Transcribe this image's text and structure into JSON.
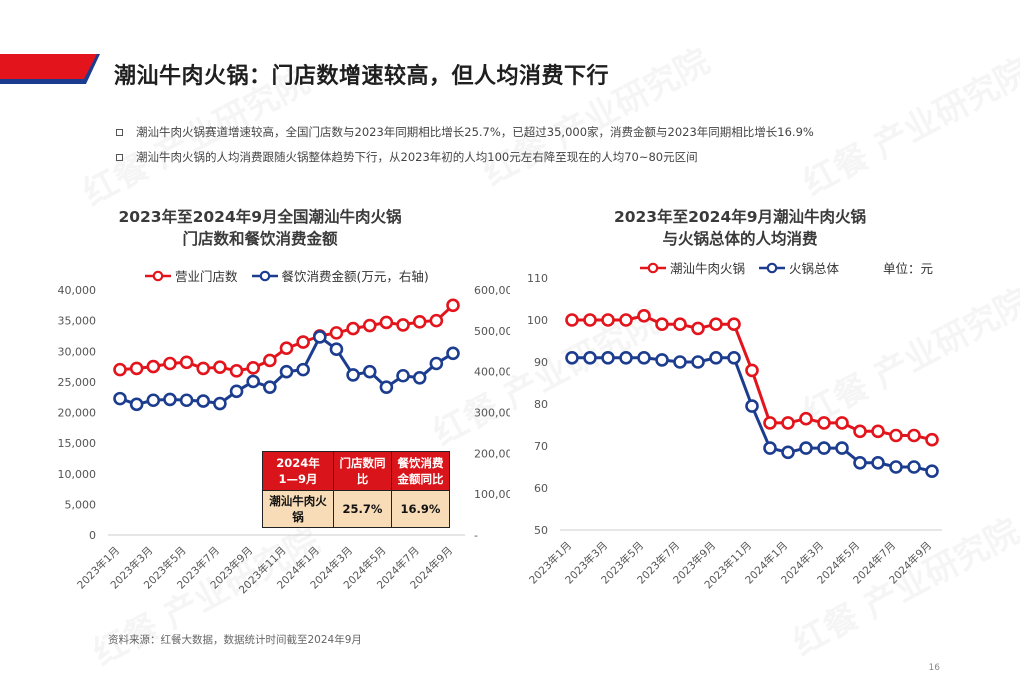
{
  "page": {
    "title": "潮汕牛肉火锅：门店数增速较高，但人均消费下行",
    "bullets": [
      "潮汕牛肉火锅赛道增速较高，全国门店数与2023年同期相比增长25.7%，已超过35,000家，消费金额与2023年同期相比增长16.9%",
      "潮汕牛肉火锅的人均消费跟随火锅整体趋势下行，从2023年初的人均100元左右降至现在的人均70~80元区间"
    ],
    "source": "资料来源：红餐大数据，数据统计时间截至2024年9月",
    "page_number": "16",
    "watermark": "红餐 产业研究院",
    "colors": {
      "red": "#e3141b",
      "blue": "#1c3d8f",
      "header_red": "#d9151b",
      "table_body": "#f8dcb8"
    }
  },
  "stat_table": {
    "headers": [
      "2024年\n1—9月",
      "门店数同\n比",
      "餐饮消费\n金额同比"
    ],
    "row": [
      "潮汕牛肉火\n锅",
      "25.7%",
      "16.9%"
    ]
  },
  "chart_data": [
    {
      "type": "line",
      "title_line1": "2023年至2024年9月全国潮汕牛肉火锅",
      "title_line2": "门店数和餐饮消费金额",
      "x": [
        "2023年1月",
        "2023年2月",
        "2023年3月",
        "2023年4月",
        "2023年5月",
        "2023年6月",
        "2023年7月",
        "2023年8月",
        "2023年9月",
        "2023年10月",
        "2023年11月",
        "2023年12月",
        "2024年1月",
        "2024年2月",
        "2024年3月",
        "2024年4月",
        "2024年5月",
        "2024年6月",
        "2024年7月",
        "2024年8月",
        "2024年9月"
      ],
      "x_tick_labels": [
        "2023年1月",
        "2023年3月",
        "2023年5月",
        "2023年7月",
        "2023年9月",
        "2023年11月",
        "2024年1月",
        "2024年3月",
        "2024年5月",
        "2024年7月",
        "2024年9月"
      ],
      "series": [
        {
          "name": "营业门店数",
          "axis": "left",
          "color": "#e3141b",
          "values": [
            27000,
            27200,
            27500,
            28000,
            28200,
            27200,
            27400,
            26800,
            27300,
            28500,
            30500,
            31500,
            32500,
            33000,
            33700,
            34200,
            34700,
            34300,
            34800,
            35000,
            37500
          ]
        },
        {
          "name": "餐饮消费金额(万元，右轴)",
          "axis": "right",
          "color": "#1c3d8f",
          "values": [
            334000,
            320000,
            330000,
            332000,
            330000,
            328000,
            322000,
            352000,
            376000,
            362000,
            400000,
            405000,
            485000,
            455000,
            392000,
            400000,
            362000,
            390000,
            385000,
            420000,
            445000
          ]
        }
      ],
      "y_left": {
        "ylim": [
          0,
          40000
        ],
        "ticks": [
          "0",
          "5,000",
          "10,000",
          "15,000",
          "20,000",
          "25,000",
          "30,000",
          "35,000",
          "40,000"
        ]
      },
      "y_right": {
        "ylim": [
          0,
          600000
        ],
        "ticks": [
          "-",
          "100,000",
          "200,000",
          "300,000",
          "400,000",
          "500,000",
          "600,000"
        ]
      },
      "legend": "top"
    },
    {
      "type": "line",
      "title_line1": "2023年至2024年9月潮汕牛肉火锅",
      "title_line2": "与火锅总体的人均消费",
      "unit_label": "单位：元",
      "x": [
        "2023年1月",
        "2023年2月",
        "2023年3月",
        "2023年4月",
        "2023年5月",
        "2023年6月",
        "2023年7月",
        "2023年8月",
        "2023年9月",
        "2023年10月",
        "2023年11月",
        "2023年12月",
        "2024年1月",
        "2024年2月",
        "2024年3月",
        "2024年4月",
        "2024年5月",
        "2024年6月",
        "2024年7月",
        "2024年8月",
        "2024年9月"
      ],
      "x_tick_labels": [
        "2023年1月",
        "2023年3月",
        "2023年5月",
        "2023年7月",
        "2023年9月",
        "2023年11月",
        "2024年1月",
        "2024年3月",
        "2024年5月",
        "2024年7月",
        "2024年9月"
      ],
      "series": [
        {
          "name": "潮汕牛肉火锅",
          "color": "#e3141b",
          "values": [
            100,
            100,
            100,
            100,
            101,
            99,
            99,
            98,
            99,
            99,
            88,
            75.5,
            75.5,
            76.5,
            75.5,
            75.5,
            73.5,
            73.5,
            72.5,
            72.5,
            71.5
          ]
        },
        {
          "name": "火锅总体",
          "color": "#1c3d8f",
          "values": [
            91,
            91,
            91,
            91,
            91,
            90.5,
            90,
            90,
            91,
            91,
            79.5,
            69.5,
            68.5,
            69.5,
            69.5,
            69.5,
            66,
            66,
            65,
            65,
            64
          ]
        }
      ],
      "y": {
        "ylim": [
          50,
          110
        ],
        "ticks": [
          "50",
          "60",
          "70",
          "80",
          "90",
          "100",
          "110"
        ]
      },
      "legend": "top"
    }
  ]
}
